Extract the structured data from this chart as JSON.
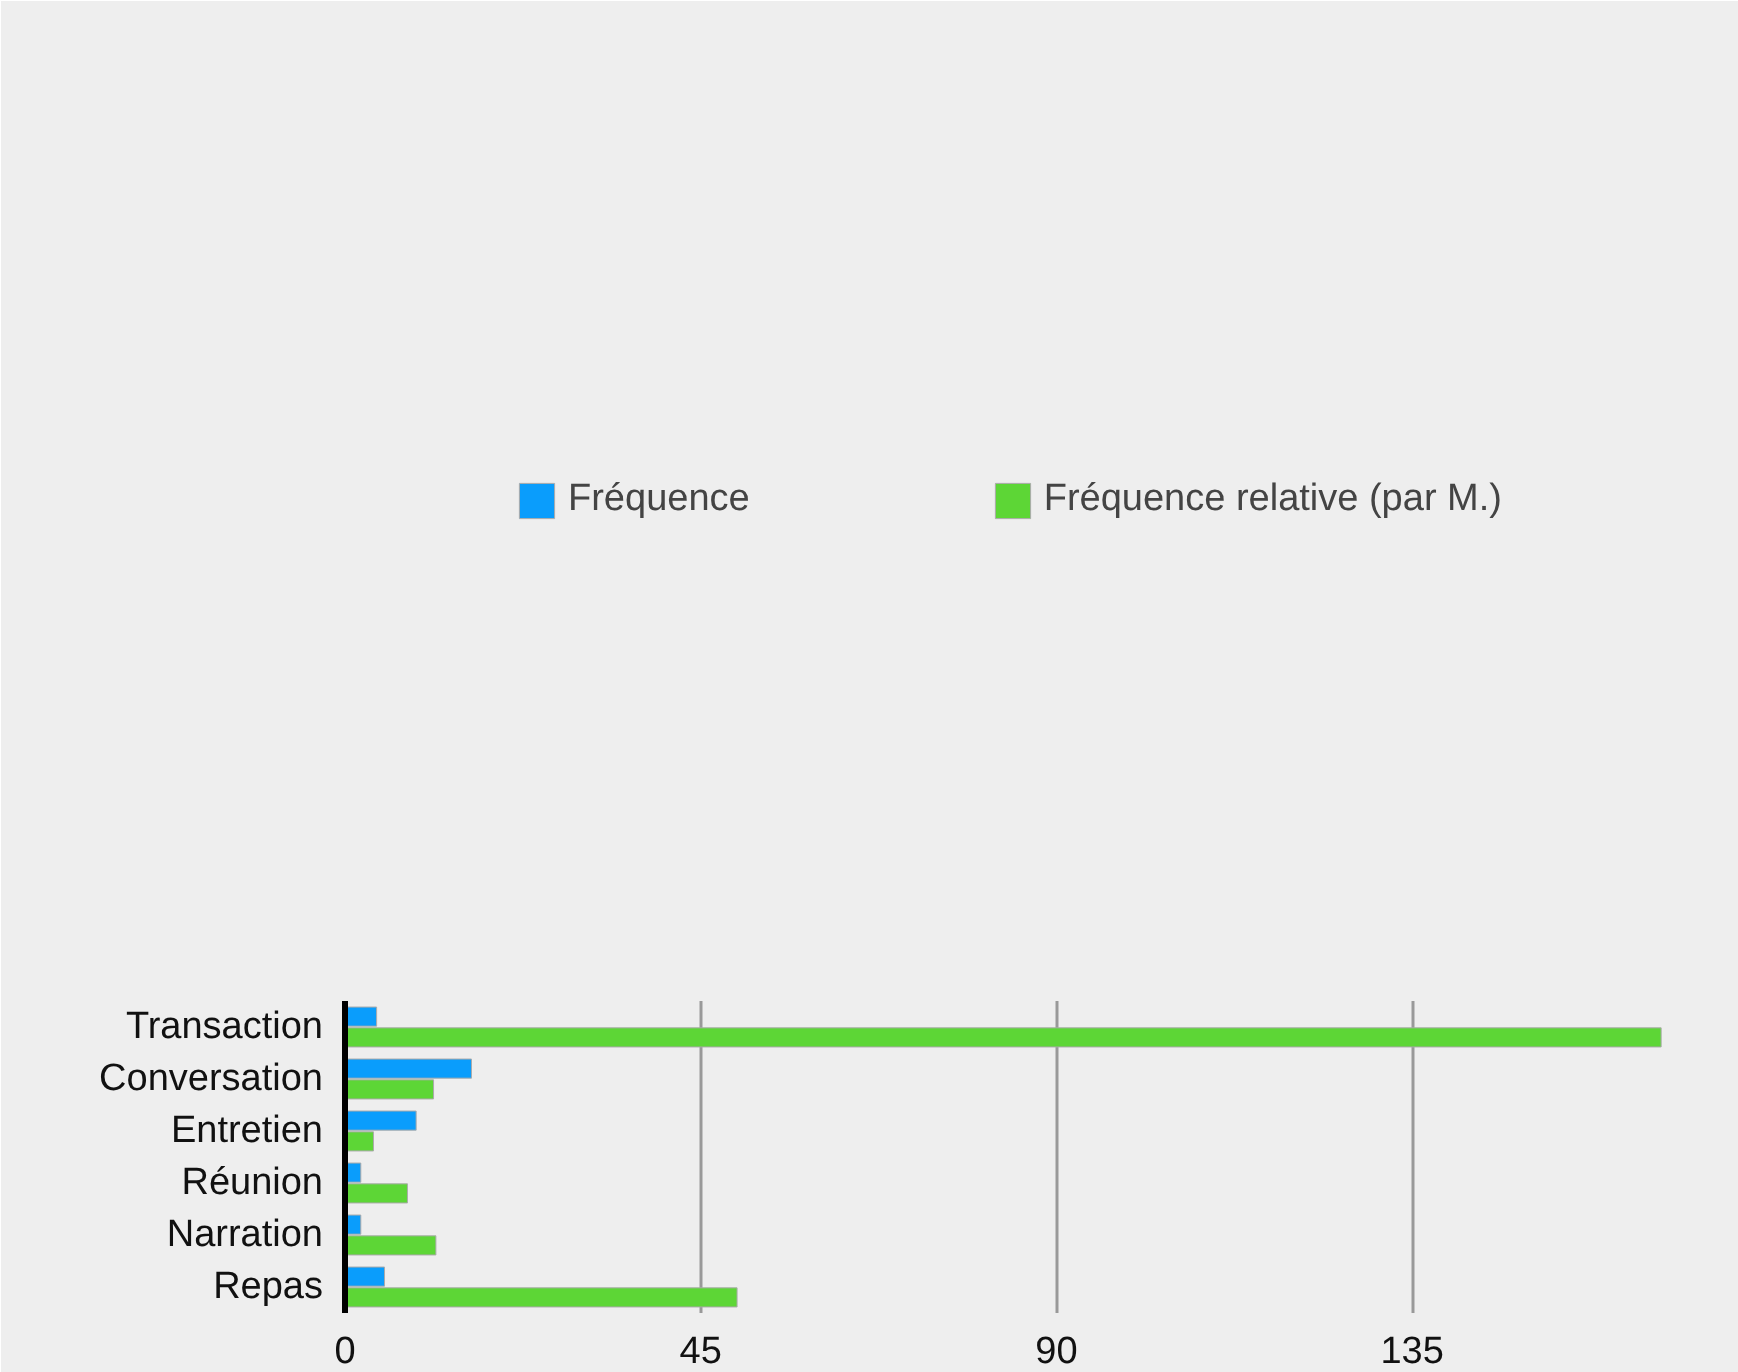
{
  "chart_data": {
    "type": "bar",
    "orientation": "horizontal",
    "categories": [
      "Transaction",
      "Conversation",
      "Entretien",
      "Réunion",
      "Narration",
      "Repas"
    ],
    "series": [
      {
        "name": "Fréquence",
        "color": "#0a9dfc",
        "values": [
          4,
          16,
          9,
          2,
          2,
          5
        ]
      },
      {
        "name": "Fréquence relative (par M.)",
        "color": "#5dd636",
        "values": [
          166.5,
          11.2,
          3.6,
          7.9,
          11.5,
          49.6
        ]
      }
    ],
    "xlim": [
      0,
      168
    ],
    "xticks": [
      0,
      45,
      90,
      135
    ],
    "grid": "x",
    "legend": "top"
  }
}
